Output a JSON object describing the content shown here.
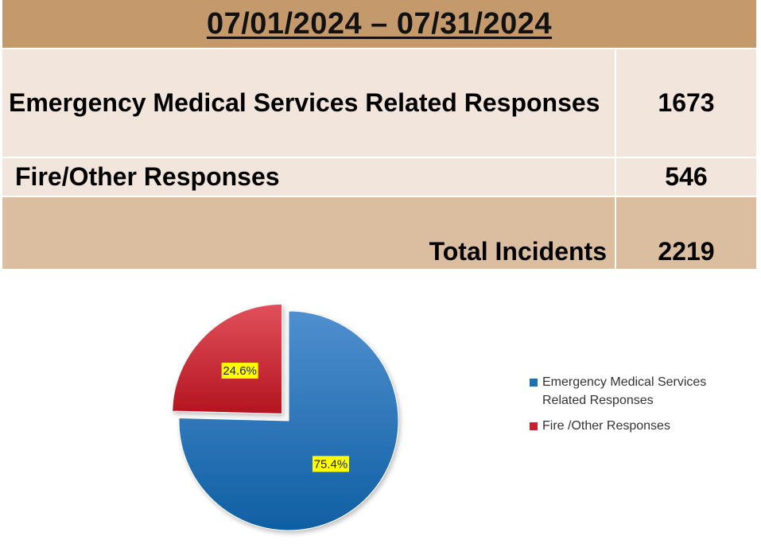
{
  "table": {
    "header": "07/01/2024 – 07/31/2024",
    "rows": [
      {
        "label": "Emergency Medical Services Related Responses",
        "value": "1673"
      },
      {
        "label": "Fire/Other Responses",
        "value": "546"
      },
      {
        "label": "Total Incidents",
        "value": "2219"
      }
    ]
  },
  "chart_data": {
    "type": "pie",
    "slices": [
      {
        "legend_line1": "Emergency Medical Services",
        "legend_line2": "Related Responses",
        "value": 75.4,
        "label": "75.4%",
        "color": "#1f6fb5"
      },
      {
        "legend_line1": "Fire /Other Responses",
        "legend_line2": "",
        "value": 24.6,
        "label": "24.6%",
        "color": "#c8202f"
      }
    ],
    "legend": "right",
    "exploded": "second"
  }
}
